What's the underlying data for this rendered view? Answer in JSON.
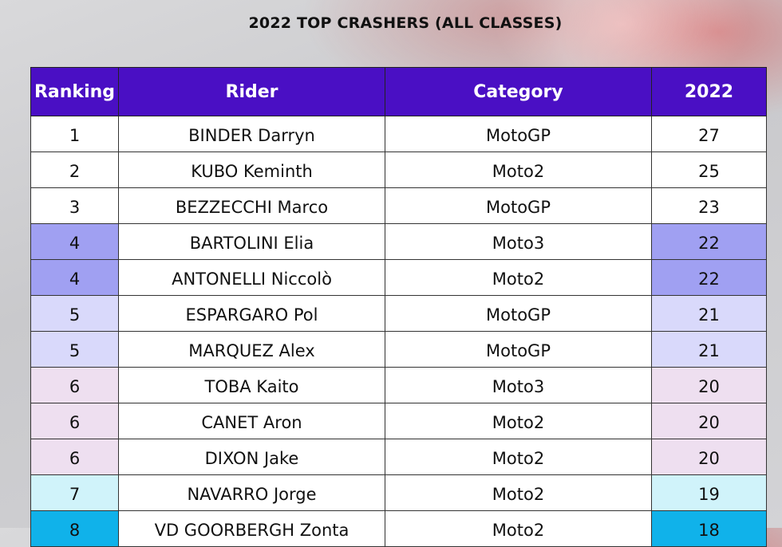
{
  "title": "2022 TOP CRASHERS (ALL CLASSES)",
  "table": {
    "headers": [
      "Ranking",
      "Rider",
      "Category",
      "2022"
    ],
    "rows": [
      [
        "1",
        "BINDER Darryn",
        "MotoGP",
        "27"
      ],
      [
        "2",
        "KUBO Keminth",
        "Moto2",
        "25"
      ],
      [
        "3",
        "BEZZECCHI Marco",
        "MotoGP",
        "23"
      ],
      [
        "4",
        "BARTOLINI Elia",
        "Moto3",
        "22"
      ],
      [
        "4",
        "ANTONELLI Niccolò",
        "Moto2",
        "22"
      ],
      [
        "5",
        "ESPARGARO Pol",
        "MotoGP",
        "21"
      ],
      [
        "5",
        "MARQUEZ Alex",
        "MotoGP",
        "21"
      ],
      [
        "6",
        "TOBA Kaito",
        "Moto3",
        "20"
      ],
      [
        "6",
        "CANET Aron",
        "Moto2",
        "20"
      ],
      [
        "6",
        "DIXON Jake",
        "Moto2",
        "20"
      ],
      [
        "7",
        "NAVARRO Jorge",
        "Moto2",
        "19"
      ],
      [
        "8",
        "VD GOORBERGH Zonta",
        "Moto2",
        "18"
      ]
    ]
  }
}
